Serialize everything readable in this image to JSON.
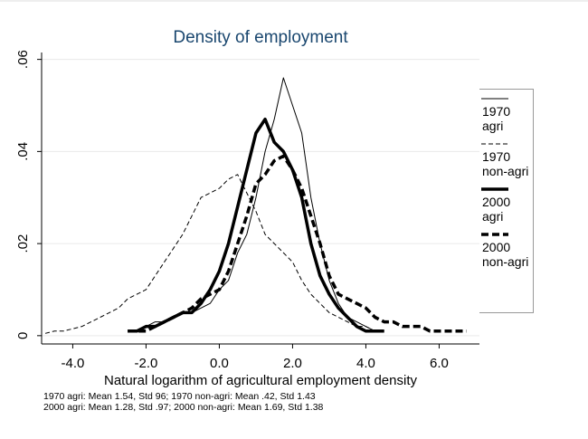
{
  "chart_data": {
    "type": "line",
    "title": "Density of employment",
    "x_label": "Natural logarithm of agricultural employment density",
    "notes": [
      "1970 agri: Mean 1.54, Std 96;  1970 non-agri: Mean .42, Std 1.43",
      "2000 agri: Mean 1.28, Std .97;  2000 non-agri: Mean 1.69, Std 1.38"
    ],
    "x": [
      -4.75,
      -4.5,
      -4.25,
      -4,
      -3.75,
      -3.5,
      -3.25,
      -3,
      -2.75,
      -2.5,
      -2.25,
      -2,
      -1.75,
      -1.5,
      -1.25,
      -1,
      -0.75,
      -0.5,
      -0.25,
      0,
      0.25,
      0.5,
      0.75,
      1,
      1.25,
      1.5,
      1.75,
      2,
      2.25,
      2.5,
      2.75,
      3,
      3.25,
      3.5,
      3.75,
      4,
      4.25,
      4.5,
      4.75,
      5,
      5.25,
      5.5,
      5.75,
      6,
      6.25,
      6.5,
      6.75
    ],
    "series": [
      {
        "name": "1970 agri",
        "color": "#000000",
        "line_width": 1,
        "dash": "none",
        "values": [
          null,
          null,
          null,
          null,
          null,
          null,
          null,
          null,
          null,
          0.001,
          0.001,
          0.002,
          0.003,
          0.003,
          0.004,
          0.005,
          0.005,
          0.006,
          0.007,
          0.01,
          0.012,
          0.018,
          0.022,
          0.03,
          0.04,
          0.047,
          0.056,
          0.05,
          0.044,
          0.03,
          0.02,
          0.012,
          0.007,
          0.004,
          0.003,
          0.002,
          0.001,
          0.001,
          null,
          null,
          null,
          null,
          null,
          null,
          null,
          null,
          null
        ]
      },
      {
        "name": "1970 non-agri",
        "color": "#000000",
        "line_width": 1,
        "dash": "5 3",
        "values": [
          0.0005,
          0.001,
          0.001,
          0.0015,
          0.002,
          0.003,
          0.004,
          0.005,
          0.006,
          0.008,
          0.009,
          0.01,
          0.013,
          0.016,
          0.019,
          0.022,
          0.026,
          0.03,
          0.031,
          0.032,
          0.034,
          0.035,
          0.031,
          0.027,
          0.022,
          0.02,
          0.018,
          0.016,
          0.012,
          0.009,
          0.007,
          0.005,
          0.004,
          0.003,
          0.002,
          0.002,
          0.001,
          0.001,
          null,
          null,
          null,
          null,
          null,
          null,
          null,
          null,
          null
        ]
      },
      {
        "name": "2000 agri",
        "color": "#000000",
        "line_width": 3.5,
        "dash": "none",
        "values": [
          null,
          null,
          null,
          null,
          null,
          null,
          null,
          null,
          null,
          0.001,
          0.001,
          0.002,
          0.002,
          0.003,
          0.004,
          0.005,
          0.005,
          0.007,
          0.01,
          0.014,
          0.02,
          0.028,
          0.036,
          0.044,
          0.047,
          0.042,
          0.04,
          0.036,
          0.03,
          0.02,
          0.013,
          0.009,
          0.006,
          0.004,
          0.002,
          0.001,
          0.001,
          0.001,
          null,
          null,
          null,
          null,
          null,
          null,
          null,
          null,
          null
        ]
      },
      {
        "name": "2000 non-agri",
        "color": "#000000",
        "line_width": 3.5,
        "dash": "8 4",
        "values": [
          null,
          null,
          null,
          null,
          null,
          null,
          null,
          null,
          null,
          0.001,
          0.001,
          0.001,
          0.002,
          0.003,
          0.004,
          0.005,
          0.006,
          0.008,
          0.009,
          0.01,
          0.014,
          0.02,
          0.026,
          0.033,
          0.035,
          0.038,
          0.039,
          0.036,
          0.032,
          0.026,
          0.02,
          0.013,
          0.009,
          0.008,
          0.007,
          0.006,
          0.004,
          0.003,
          0.003,
          0.002,
          0.002,
          0.002,
          0.001,
          0.001,
          0.001,
          0.001,
          0.001
        ]
      }
    ],
    "xlim": [
      -4.85,
      7.1
    ],
    "xticks": [
      {
        "value": -4,
        "label": "-4.0"
      },
      {
        "value": -2,
        "label": "-2.0"
      },
      {
        "value": 0,
        "label": "0.0"
      },
      {
        "value": 2,
        "label": "2.0"
      },
      {
        "value": 4,
        "label": "4.0"
      },
      {
        "value": 6,
        "label": "6.0"
      }
    ],
    "ylim": [
      -0.0018,
      0.0615
    ],
    "yticks": [
      0,
      {
        "value": 0.02,
        "label": ".02"
      },
      {
        "value": 0.04,
        "label": ".04"
      },
      {
        "value": 0.06,
        "label": ".06"
      }
    ],
    "grid": true,
    "legend": "right"
  }
}
